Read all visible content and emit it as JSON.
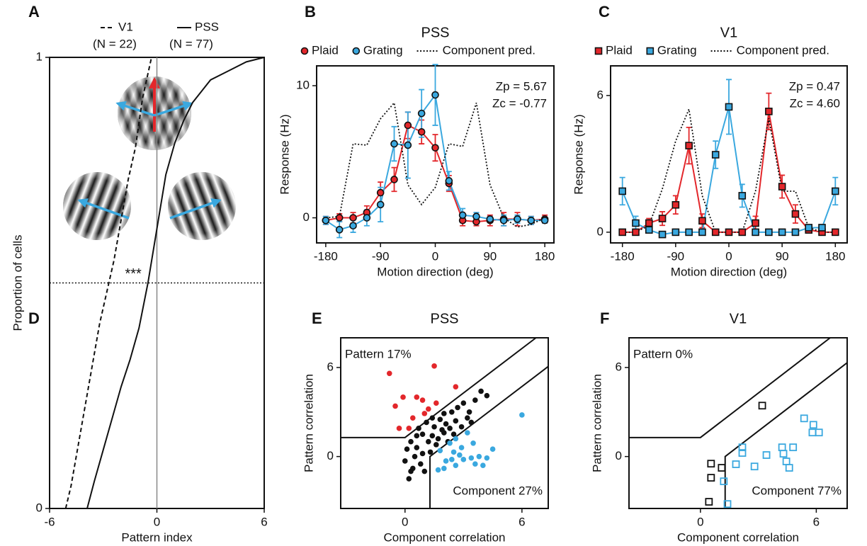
{
  "diagram": {
    "panel": "A"
  },
  "chart_data": [
    {
      "type": "line",
      "panel": "B",
      "title": "PSS",
      "x_label": "Motion direction (deg)",
      "y_label": "Response (Hz)",
      "x": [
        -180,
        -157.5,
        -135,
        -112.5,
        -90,
        -67.5,
        -45,
        -22.5,
        0,
        22.5,
        45,
        67.5,
        90,
        112.5,
        135,
        157.5,
        180
      ],
      "series": [
        {
          "name": "Plaid",
          "color": "#e3272b",
          "marker": "circle",
          "values": [
            -0.2,
            0,
            0,
            0.4,
            1.9,
            2.9,
            7.0,
            6.5,
            5.3,
            2.6,
            -0.2,
            -0.3,
            -0.2,
            -0.1,
            -0.1,
            -0.2,
            -0.1
          ],
          "errors": [
            0.3,
            0.3,
            0.4,
            0.5,
            0.8,
            0.9,
            1.0,
            0.9,
            1.0,
            0.6,
            0.4,
            0.3,
            0.4,
            0.5,
            0.5,
            0.3,
            0.3
          ]
        },
        {
          "name": "Grating",
          "color": "#3aa8df",
          "marker": "circle",
          "values": [
            -0.2,
            -0.9,
            -0.6,
            0,
            1.0,
            5.6,
            5.5,
            7.9,
            9.3,
            2.8,
            0.2,
            0.1,
            -0.1,
            -0.2,
            -0.1,
            -0.2,
            -0.2
          ],
          "errors": [
            0.3,
            0.6,
            0.5,
            0.6,
            1.3,
            1.3,
            2.5,
            1.8,
            2.3,
            0.7,
            0.5,
            0.3,
            0.2,
            0.4,
            0.3,
            0.3,
            0.2
          ]
        },
        {
          "name": "Component pred.",
          "color": "#111111",
          "style": "dotted",
          "values": [
            0,
            0.1,
            5.6,
            5.5,
            7.5,
            8.7,
            2.5,
            1.0,
            2.3,
            5.6,
            5.4,
            8.7,
            2.5,
            0,
            -0.7,
            -0.5,
            0
          ]
        }
      ],
      "xlim": [
        -195,
        195
      ],
      "ylim": [
        -1.9,
        11.5
      ],
      "xticks": [
        -180,
        -90,
        0,
        90,
        180
      ],
      "yticks": [
        0,
        10
      ],
      "annotations": [
        "Zp = 5.67",
        "Zc = -0.77"
      ]
    },
    {
      "type": "line",
      "panel": "C",
      "title": "V1",
      "x_label": "Motion direction (deg)",
      "y_label": "Response (Hz)",
      "x": [
        -180,
        -157.5,
        -135,
        -112.5,
        -90,
        -67.5,
        -45,
        -22.5,
        0,
        22.5,
        45,
        67.5,
        90,
        112.5,
        135,
        157.5,
        180
      ],
      "series": [
        {
          "name": "Plaid",
          "color": "#e3272b",
          "marker": "square",
          "values": [
            0,
            0,
            0.4,
            0.6,
            1.2,
            3.8,
            0.5,
            0,
            0,
            0,
            0.4,
            5.3,
            2.0,
            0.8,
            0.1,
            0,
            0
          ],
          "errors": [
            0,
            0,
            0.2,
            0.3,
            0.4,
            0.8,
            0.3,
            0,
            0,
            0,
            0.3,
            0.8,
            0.5,
            0.4,
            0.1,
            0,
            0
          ]
        },
        {
          "name": "Grating",
          "color": "#3aa8df",
          "marker": "square",
          "values": [
            1.8,
            0.4,
            0.1,
            -0.1,
            0,
            0,
            0,
            3.4,
            5.5,
            1.6,
            0,
            0,
            0,
            0,
            0.2,
            0.2,
            1.8
          ],
          "errors": [
            0.6,
            0.3,
            0.1,
            0.1,
            0,
            0,
            0,
            0.6,
            1.2,
            0.5,
            0,
            0,
            0,
            0,
            0.1,
            0.1,
            0.6
          ]
        },
        {
          "name": "Component pred.",
          "color": "#111111",
          "style": "dotted",
          "values": [
            0,
            0,
            0.3,
            1.9,
            4.0,
            5.4,
            1.6,
            0,
            0,
            0,
            1.8,
            5.0,
            1.8,
            1.8,
            0.2,
            0,
            0
          ]
        }
      ],
      "xlim": [
        -200,
        200
      ],
      "ylim": [
        -0.47,
        7.3
      ],
      "xticks": [
        -180,
        -90,
        0,
        90,
        180
      ],
      "yticks": [
        0,
        6
      ],
      "annotations": [
        "Zp = 0.47",
        "Zc = 4.60"
      ]
    },
    {
      "type": "cdf",
      "panel": "D",
      "x_label": "Pattern index",
      "y_label": "Proportion of cells",
      "series": [
        {
          "name": "V1",
          "n_label": "(N = 22)",
          "color": "#111111",
          "style": "dashed",
          "x": [
            -5.1,
            -4.8,
            -4.4,
            -4.0,
            -3.6,
            -3.2,
            -2.8,
            -2.4,
            -2.0,
            -1.6,
            -1.2,
            -0.8,
            -0.3
          ],
          "values": [
            0,
            0.05,
            0.14,
            0.23,
            0.32,
            0.41,
            0.48,
            0.55,
            0.64,
            0.73,
            0.8,
            0.91,
            1.0
          ]
        },
        {
          "name": "PSS",
          "n_label": "(N = 77)",
          "color": "#111111",
          "style": "solid",
          "x": [
            -3.9,
            -3.5,
            -3.0,
            -2.5,
            -2.0,
            -1.5,
            -1.0,
            -0.5,
            0,
            0.5,
            1,
            1.5,
            2,
            3,
            4,
            5,
            6
          ],
          "values": [
            0,
            0.06,
            0.13,
            0.2,
            0.27,
            0.33,
            0.4,
            0.5,
            0.62,
            0.74,
            0.81,
            0.86,
            0.9,
            0.95,
            0.97,
            0.99,
            1.0
          ]
        }
      ],
      "hline": 0.5,
      "vline": 0,
      "xlim": [
        -6,
        6
      ],
      "ylim": [
        0,
        1
      ],
      "xticks": [
        -6,
        0,
        6
      ],
      "yticks": [
        0,
        1
      ],
      "annotations": [
        "***"
      ]
    },
    {
      "type": "scatter",
      "panel": "E",
      "title": "PSS",
      "x_label": "Component correlation",
      "y_label": "Pattern correlation",
      "boundary": 1.28,
      "series": [
        {
          "color": "#e3272b",
          "marker": "dot",
          "x": [
            -0.8,
            1.5,
            -0.1,
            0.6,
            1.2,
            2.6,
            -0.3,
            0.2,
            1.0,
            -0.5,
            0.9,
            0.4,
            1.6
          ],
          "values": [
            5.6,
            6.1,
            4.0,
            4.0,
            3.2,
            4.7,
            1.9,
            1.9,
            2.9,
            3.4,
            3.8,
            2.6,
            3.6
          ]
        },
        {
          "color": "#111111",
          "marker": "dot",
          "x": [
            0.3,
            0.6,
            0.9,
            1.2,
            1.5,
            1.8,
            2.1,
            2.4,
            2.7,
            3.0,
            3.3,
            3.6,
            3.9,
            4.2,
            0.5,
            0.8,
            1.0,
            0.2,
            0.0,
            0.4,
            0.7,
            1.1,
            1.4,
            1.7,
            2.0,
            2.3,
            2.6,
            2.9,
            3.2,
            1.3,
            0.9,
            1.6,
            2.2,
            0.1,
            0.6,
            1.9,
            2.5,
            3.4,
            1.4,
            2.0,
            0.3
          ],
          "values": [
            1.0,
            0.6,
            1.5,
            1.0,
            2.0,
            2.5,
            2.2,
            3.0,
            3.3,
            3.6,
            3.0,
            3.8,
            4.4,
            4.1,
            0.0,
            -0.5,
            -1.0,
            -1.5,
            -0.3,
            -0.8,
            1.9,
            2.3,
            1.4,
            1.2,
            1.6,
            1.9,
            2.4,
            2.0,
            2.6,
            0.3,
            0.2,
            0.8,
            1.0,
            0.5,
            1.4,
            1.8,
            1.5,
            2.3,
            2.6,
            2.9,
            -1.0
          ]
        },
        {
          "color": "#3aa8df",
          "marker": "dot",
          "x": [
            2.3,
            1.8,
            2.5,
            3.2,
            2.1,
            2.9,
            3.5,
            1.7,
            2.0,
            2.6,
            3.0,
            3.4,
            3.8,
            4.2,
            3.6,
            4.0,
            2.4,
            2.8,
            4.5,
            2.6,
            6.0
          ],
          "values": [
            0.9,
            0.4,
            0.3,
            1.6,
            -0.3,
            0.6,
            0.9,
            -0.9,
            -0.8,
            -0.6,
            -0.2,
            -0.1,
            0.0,
            -0.1,
            -0.5,
            -0.6,
            -0.2,
            0.1,
            0.5,
            1.2,
            2.8
          ]
        }
      ],
      "xlim": [
        -3.3,
        7.35
      ],
      "ylim": [
        -3.5,
        8
      ],
      "xticks": [
        0,
        6
      ],
      "yticks": [
        0,
        6
      ],
      "annotations": [
        "Pattern 17%",
        "Component 27%"
      ]
    },
    {
      "type": "scatter",
      "panel": "F",
      "title": "V1",
      "x_label": "Component correlation",
      "y_label": "Pattern correlation",
      "boundary": 1.28,
      "series": [
        {
          "color": "#111111",
          "marker": "open-square",
          "x": [
            0.55,
            0.55,
            0.44,
            1.1,
            3.2
          ],
          "values": [
            -0.48,
            -1.43,
            -3.05,
            -0.76,
            3.43
          ]
        },
        {
          "color": "#3aa8df",
          "marker": "open-square",
          "x": [
            1.21,
            1.4,
            2.17,
            2.17,
            1.84,
            2.8,
            3.42,
            4.23,
            4.3,
            4.45,
            4.8,
            5.37,
            5.85,
            5.8,
            6.14,
            4.6
          ],
          "values": [
            -1.67,
            -3.2,
            0.62,
            0.24,
            -0.52,
            -0.67,
            0.1,
            0.62,
            0.19,
            -0.33,
            0.62,
            2.57,
            2.14,
            1.62,
            1.62,
            -0.76
          ]
        }
      ],
      "xlim": [
        -3.7,
        7.6
      ],
      "ylim": [
        -3.5,
        8
      ],
      "xticks": [
        0,
        6
      ],
      "yticks": [
        0,
        6
      ],
      "annotations": [
        "Pattern 0%",
        "Component 77%"
      ]
    }
  ]
}
